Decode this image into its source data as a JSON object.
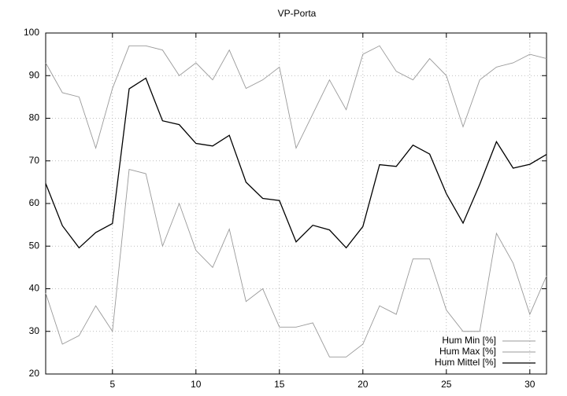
{
  "chart_data": {
    "type": "line",
    "title": "VP-Porta",
    "x": [
      1,
      2,
      3,
      4,
      5,
      6,
      7,
      8,
      9,
      10,
      11,
      12,
      13,
      14,
      15,
      16,
      17,
      18,
      19,
      20,
      21,
      22,
      23,
      24,
      25,
      26,
      27,
      28,
      29,
      30,
      31
    ],
    "series": [
      {
        "name": "Hum Min [%]",
        "color": "#999999",
        "values": [
          39,
          27,
          29,
          36,
          30,
          68,
          67,
          50,
          60,
          49,
          45,
          54,
          37,
          40,
          31,
          31,
          32,
          24,
          24,
          27,
          36,
          34,
          47,
          47,
          35,
          30,
          30,
          53,
          46,
          34,
          43
        ]
      },
      {
        "name": "Hum Max [%]",
        "color": "#999999",
        "values": [
          93,
          86,
          85,
          73,
          87,
          97,
          97,
          96,
          90,
          93,
          89,
          96,
          87,
          89,
          92,
          73,
          81,
          89,
          82,
          95,
          97,
          91,
          89,
          94,
          90,
          78,
          89,
          92,
          93,
          95,
          94
        ]
      },
      {
        "name": "Hum Mittel [%]",
        "color": "#000000",
        "values": [
          64.7,
          54.8,
          49.6,
          53.2,
          55.3,
          86.9,
          89.4,
          79.4,
          78.5,
          74.1,
          73.5,
          76,
          65,
          61.2,
          60.7,
          51,
          54.9,
          53.8,
          49.6,
          54.6,
          69.1,
          68.7,
          73.7,
          71.6,
          62.3,
          55.4,
          64.5,
          74.5,
          68.3,
          69.2,
          71.5
        ]
      }
    ],
    "xlim": [
      1,
      31
    ],
    "xticks": [
      5,
      10,
      15,
      20,
      25,
      30
    ],
    "ylim": [
      20,
      100
    ],
    "yticks": [
      20,
      30,
      40,
      50,
      60,
      70,
      80,
      90,
      100
    ],
    "grid": true,
    "legend": "bottom-right"
  }
}
